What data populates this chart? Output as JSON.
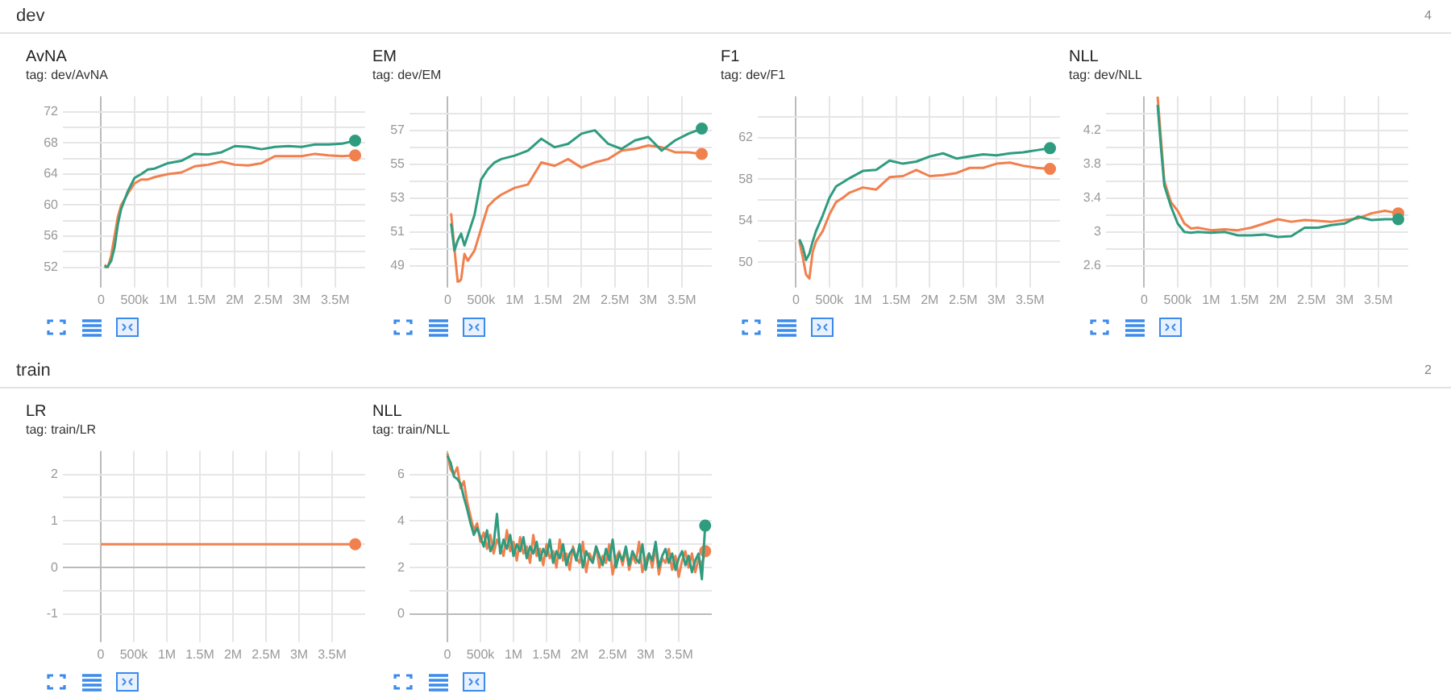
{
  "chart_data": [
    {
      "type": "line",
      "title": "AvNA",
      "subtitle": "tag: dev/AvNA",
      "annotations": [
        "dev",
        "4"
      ],
      "grid": true,
      "legend": false,
      "x": [
        50000,
        100000,
        150000,
        200000,
        250000,
        300000,
        400000,
        500000,
        600000,
        700000,
        800000,
        1000000,
        1200000,
        1400000,
        1600000,
        1800000,
        2000000,
        2200000,
        2400000,
        2600000,
        2800000,
        3000000,
        3200000,
        3400000,
        3600000,
        3800000
      ],
      "series": [
        {
          "color": "#2f9c7f",
          "values": [
            52.0,
            52.1,
            52.8,
            54.5,
            57.5,
            59.5,
            61.8,
            63.5,
            64.0,
            64.6,
            64.7,
            65.4,
            65.7,
            66.6,
            66.5,
            66.8,
            67.6,
            67.5,
            67.2,
            67.5,
            67.6,
            67.5,
            67.8,
            67.8,
            67.9,
            68.3
          ]
        },
        {
          "color": "#f0804e",
          "values": [
            52.3,
            52.0,
            53.5,
            56.0,
            58.5,
            60.0,
            61.5,
            62.8,
            63.3,
            63.3,
            63.6,
            64.0,
            64.2,
            65.0,
            65.2,
            65.6,
            65.2,
            65.1,
            65.4,
            66.3,
            66.3,
            66.3,
            66.6,
            66.4,
            66.3,
            66.4
          ]
        }
      ],
      "xlim": [
        -500000,
        3950000
      ],
      "xticks": [
        {
          "value": 0,
          "label": "0"
        },
        {
          "value": 500000,
          "label": "500k"
        },
        {
          "value": 1000000,
          "label": "1M"
        },
        {
          "value": 1500000,
          "label": "1.5M"
        },
        {
          "value": 2000000,
          "label": "2M"
        },
        {
          "value": 2500000,
          "label": "2.5M"
        },
        {
          "value": 3000000,
          "label": "3M"
        },
        {
          "value": 3500000,
          "label": "3.5M"
        }
      ],
      "ylim": [
        50,
        74
      ],
      "yticks": [
        52,
        {
          "value": 54,
          "label": null
        },
        56,
        {
          "value": 58,
          "label": null
        },
        60,
        {
          "value": 62,
          "label": null
        },
        64,
        {
          "value": 66,
          "label": null
        },
        68,
        {
          "value": 70,
          "label": null
        },
        72
      ]
    },
    {
      "type": "line",
      "title": "EM",
      "subtitle": "tag: dev/EM",
      "grid": true,
      "legend": false,
      "x": [
        50000,
        100000,
        150000,
        200000,
        250000,
        300000,
        400000,
        500000,
        600000,
        700000,
        800000,
        1000000,
        1200000,
        1400000,
        1600000,
        1800000,
        2000000,
        2200000,
        2400000,
        2600000,
        2800000,
        3000000,
        3200000,
        3400000,
        3600000,
        3800000
      ],
      "series": [
        {
          "color": "#2f9c7f",
          "values": [
            51.5,
            49.9,
            50.5,
            50.9,
            50.2,
            50.8,
            52.0,
            54.1,
            54.7,
            55.1,
            55.3,
            55.5,
            55.8,
            56.5,
            56.0,
            56.2,
            56.8,
            57.0,
            56.2,
            55.9,
            56.4,
            56.6,
            55.8,
            56.4,
            56.8,
            57.1
          ]
        },
        {
          "color": "#f0804e",
          "values": [
            52.1,
            50.0,
            48.0,
            48.2,
            49.7,
            49.3,
            49.9,
            51.2,
            52.5,
            52.9,
            53.2,
            53.6,
            53.8,
            55.1,
            54.9,
            55.3,
            54.8,
            55.1,
            55.3,
            55.8,
            55.9,
            56.1,
            56.0,
            55.7,
            55.7,
            55.6
          ]
        }
      ],
      "xlim": [
        -500000,
        3950000
      ],
      "xticks": [
        {
          "value": 0,
          "label": "0"
        },
        {
          "value": 500000,
          "label": "500k"
        },
        {
          "value": 1000000,
          "label": "1M"
        },
        {
          "value": 1500000,
          "label": "1.5M"
        },
        {
          "value": 2000000,
          "label": "2M"
        },
        {
          "value": 2500000,
          "label": "2.5M"
        },
        {
          "value": 3000000,
          "label": "3M"
        },
        {
          "value": 3500000,
          "label": "3.5M"
        }
      ],
      "ylim": [
        48,
        59
      ],
      "yticks": [
        49,
        {
          "value": 50,
          "label": null
        },
        51,
        {
          "value": 52,
          "label": null
        },
        53,
        {
          "value": 54,
          "label": null
        },
        55,
        {
          "value": 56,
          "label": null
        },
        57,
        {
          "value": 58,
          "label": null
        }
      ]
    },
    {
      "type": "line",
      "title": "F1",
      "subtitle": "tag: dev/F1",
      "grid": true,
      "legend": false,
      "x": [
        50000,
        100000,
        150000,
        200000,
        250000,
        300000,
        400000,
        500000,
        600000,
        700000,
        800000,
        1000000,
        1200000,
        1400000,
        1600000,
        1800000,
        2000000,
        2200000,
        2400000,
        2600000,
        2800000,
        3000000,
        3200000,
        3400000,
        3600000,
        3800000
      ],
      "series": [
        {
          "color": "#2f9c7f",
          "values": [
            52.2,
            51.5,
            50.2,
            50.8,
            52.0,
            53.0,
            54.5,
            56.2,
            57.3,
            57.7,
            58.1,
            58.8,
            58.9,
            59.8,
            59.5,
            59.7,
            60.2,
            60.5,
            60.0,
            60.2,
            60.4,
            60.3,
            60.5,
            60.6,
            60.8,
            61.0
          ]
        },
        {
          "color": "#f0804e",
          "values": [
            52.0,
            50.5,
            48.8,
            48.4,
            51.0,
            52.0,
            53.0,
            54.6,
            55.8,
            56.2,
            56.7,
            57.2,
            57.0,
            58.2,
            58.3,
            58.9,
            58.3,
            58.4,
            58.6,
            59.1,
            59.1,
            59.5,
            59.6,
            59.3,
            59.1,
            59.0
          ]
        }
      ],
      "xlim": [
        -500000,
        3950000
      ],
      "xticks": [
        {
          "value": 0,
          "label": "0"
        },
        {
          "value": 500000,
          "label": "500k"
        },
        {
          "value": 1000000,
          "label": "1M"
        },
        {
          "value": 1500000,
          "label": "1.5M"
        },
        {
          "value": 2000000,
          "label": "2M"
        },
        {
          "value": 2500000,
          "label": "2.5M"
        },
        {
          "value": 3000000,
          "label": "3M"
        },
        {
          "value": 3500000,
          "label": "3.5M"
        }
      ],
      "ylim": [
        48,
        66
      ],
      "yticks": [
        50,
        {
          "value": 52,
          "label": null
        },
        54,
        {
          "value": 56,
          "label": null
        },
        58,
        {
          "value": 60,
          "label": null
        },
        62,
        {
          "value": 64,
          "label": null
        }
      ]
    },
    {
      "type": "line",
      "title": "NLL",
      "subtitle": "tag: dev/NLL",
      "grid": true,
      "legend": false,
      "x": [
        200000,
        250000,
        300000,
        400000,
        500000,
        600000,
        700000,
        800000,
        1000000,
        1200000,
        1400000,
        1600000,
        1800000,
        2000000,
        2200000,
        2400000,
        2600000,
        2800000,
        3000000,
        3200000,
        3400000,
        3600000,
        3800000
      ],
      "series": [
        {
          "color": "#2f9c7f",
          "values": [
            4.5,
            4.0,
            3.55,
            3.3,
            3.1,
            3.0,
            2.99,
            3.0,
            2.99,
            3.0,
            2.96,
            2.96,
            2.97,
            2.94,
            2.95,
            3.05,
            3.05,
            3.08,
            3.1,
            3.18,
            3.14,
            3.15,
            3.15
          ]
        },
        {
          "color": "#f0804e",
          "values": [
            4.6,
            4.1,
            3.6,
            3.35,
            3.25,
            3.1,
            3.04,
            3.05,
            3.02,
            3.03,
            3.02,
            3.05,
            3.1,
            3.15,
            3.12,
            3.14,
            3.13,
            3.12,
            3.14,
            3.16,
            3.22,
            3.25,
            3.22
          ]
        }
      ],
      "xlim": [
        -500000,
        3950000
      ],
      "xticks": [
        {
          "value": 0,
          "label": "0"
        },
        {
          "value": 500000,
          "label": "500k"
        },
        {
          "value": 1000000,
          "label": "1M"
        },
        {
          "value": 1500000,
          "label": "1.5M"
        },
        {
          "value": 2000000,
          "label": "2M"
        },
        {
          "value": 2500000,
          "label": "2.5M"
        },
        {
          "value": 3000000,
          "label": "3M"
        },
        {
          "value": 3500000,
          "label": "3.5M"
        }
      ],
      "ylim": [
        2.4,
        4.6
      ],
      "yticks": [
        2.6,
        {
          "value": 2.8,
          "label": null
        },
        3,
        {
          "value": 3.2,
          "label": null
        },
        3.4,
        {
          "value": 3.6,
          "label": null
        },
        3.8,
        {
          "value": 4.0,
          "label": null
        },
        4.2,
        {
          "value": 4.4,
          "label": null
        }
      ]
    },
    {
      "type": "line",
      "title": "LR",
      "subtitle": "tag: train/LR",
      "annotations": [
        "train",
        "2"
      ],
      "grid": true,
      "legend": false,
      "x": [
        0,
        3850000
      ],
      "series": [
        {
          "color": "#f0804e",
          "values": [
            0.5,
            0.5
          ]
        }
      ],
      "xlim": [
        -500000,
        4000000
      ],
      "xticks": [
        {
          "value": 0,
          "label": "0"
        },
        {
          "value": 500000,
          "label": "500k"
        },
        {
          "value": 1000000,
          "label": "1M"
        },
        {
          "value": 1500000,
          "label": "1.5M"
        },
        {
          "value": 2000000,
          "label": "2M"
        },
        {
          "value": 2500000,
          "label": "2.5M"
        },
        {
          "value": 3000000,
          "label": "3M"
        },
        {
          "value": 3500000,
          "label": "3.5M"
        }
      ],
      "ylim": [
        -1.5,
        2.5
      ],
      "yticks": [
        -1,
        {
          "value": -0.5,
          "label": null
        },
        0,
        {
          "value": 0.5,
          "label": null
        },
        1,
        {
          "value": 1.5,
          "label": null
        },
        2
      ]
    },
    {
      "type": "line",
      "title": "NLL",
      "subtitle": "tag: train/NLL",
      "grid": true,
      "legend": false,
      "x": [
        0,
        50000,
        100000,
        150000,
        200000,
        250000,
        300000,
        350000,
        400000,
        450000,
        500000,
        550000,
        600000,
        650000,
        700000,
        750000,
        800000,
        850000,
        900000,
        950000,
        1000000,
        1050000,
        1100000,
        1150000,
        1200000,
        1250000,
        1300000,
        1350000,
        1400000,
        1450000,
        1500000,
        1550000,
        1600000,
        1650000,
        1700000,
        1750000,
        1800000,
        1850000,
        1900000,
        1950000,
        2000000,
        2050000,
        2100000,
        2150000,
        2200000,
        2250000,
        2300000,
        2350000,
        2400000,
        2450000,
        2500000,
        2550000,
        2600000,
        2650000,
        2700000,
        2750000,
        2800000,
        2850000,
        2900000,
        2950000,
        3000000,
        3050000,
        3100000,
        3150000,
        3200000,
        3250000,
        3300000,
        3350000,
        3400000,
        3450000,
        3500000,
        3550000,
        3600000,
        3650000,
        3700000,
        3750000,
        3800000,
        3850000,
        3900000
      ],
      "series": [
        {
          "color": "#2f9c7f",
          "values": [
            6.8,
            6.5,
            5.9,
            5.8,
            5.6,
            5.0,
            4.5,
            3.9,
            3.4,
            3.7,
            3.3,
            2.9,
            3.6,
            2.7,
            3.0,
            4.3,
            2.6,
            3.2,
            2.8,
            3.4,
            2.5,
            3.0,
            2.7,
            3.3,
            2.4,
            2.9,
            2.6,
            3.1,
            2.3,
            2.8,
            2.5,
            3.2,
            2.2,
            2.7,
            2.4,
            3.0,
            2.1,
            2.6,
            2.8,
            2.3,
            3.0,
            2.0,
            2.7,
            2.4,
            2.2,
            2.9,
            2.5,
            2.1,
            2.8,
            2.3,
            3.2,
            2.0,
            2.6,
            2.3,
            2.9,
            2.1,
            2.7,
            2.4,
            2.2,
            3.0,
            1.9,
            2.6,
            2.3,
            3.1,
            2.0,
            2.5,
            2.8,
            2.2,
            2.6,
            1.9,
            2.4,
            2.7,
            2.1,
            2.5,
            1.8,
            2.3,
            2.6,
            1.5,
            3.8
          ]
        },
        {
          "color": "#f0804e",
          "values": [
            6.9,
            6.2,
            6.0,
            6.3,
            5.4,
            5.7,
            4.8,
            4.2,
            3.6,
            3.9,
            3.1,
            3.5,
            2.8,
            3.4,
            2.6,
            3.2,
            2.9,
            2.5,
            3.6,
            2.7,
            3.1,
            2.3,
            3.3,
            2.6,
            2.9,
            2.2,
            3.4,
            2.5,
            2.8,
            2.1,
            3.0,
            2.4,
            2.7,
            2.0,
            3.2,
            2.3,
            2.6,
            1.9,
            2.9,
            2.4,
            2.2,
            3.1,
            1.8,
            2.6,
            2.3,
            2.9,
            2.0,
            2.5,
            2.2,
            3.0,
            1.7,
            2.4,
            2.7,
            2.1,
            2.8,
            1.9,
            2.5,
            2.2,
            3.1,
            1.8,
            2.3,
            2.6,
            2.0,
            2.9,
            1.7,
            2.4,
            2.2,
            2.8,
            1.9,
            2.5,
            1.6,
            2.3,
            2.7,
            2.0,
            2.6,
            1.8,
            2.4,
            2.1,
            2.7
          ]
        }
      ],
      "xlim": [
        -500000,
        4000000
      ],
      "xticks": [
        {
          "value": 0,
          "label": "0"
        },
        {
          "value": 500000,
          "label": "500k"
        },
        {
          "value": 1000000,
          "label": "1M"
        },
        {
          "value": 1500000,
          "label": "1.5M"
        },
        {
          "value": 2000000,
          "label": "2M"
        },
        {
          "value": 2500000,
          "label": "2.5M"
        },
        {
          "value": 3000000,
          "label": "3M"
        },
        {
          "value": 3500000,
          "label": "3.5M"
        }
      ],
      "ylim": [
        -1,
        7
      ],
      "yticks": [
        0,
        {
          "value": 1,
          "label": null
        },
        2,
        {
          "value": 3,
          "label": null
        },
        4,
        {
          "value": 5,
          "label": null
        },
        6
      ]
    }
  ]
}
